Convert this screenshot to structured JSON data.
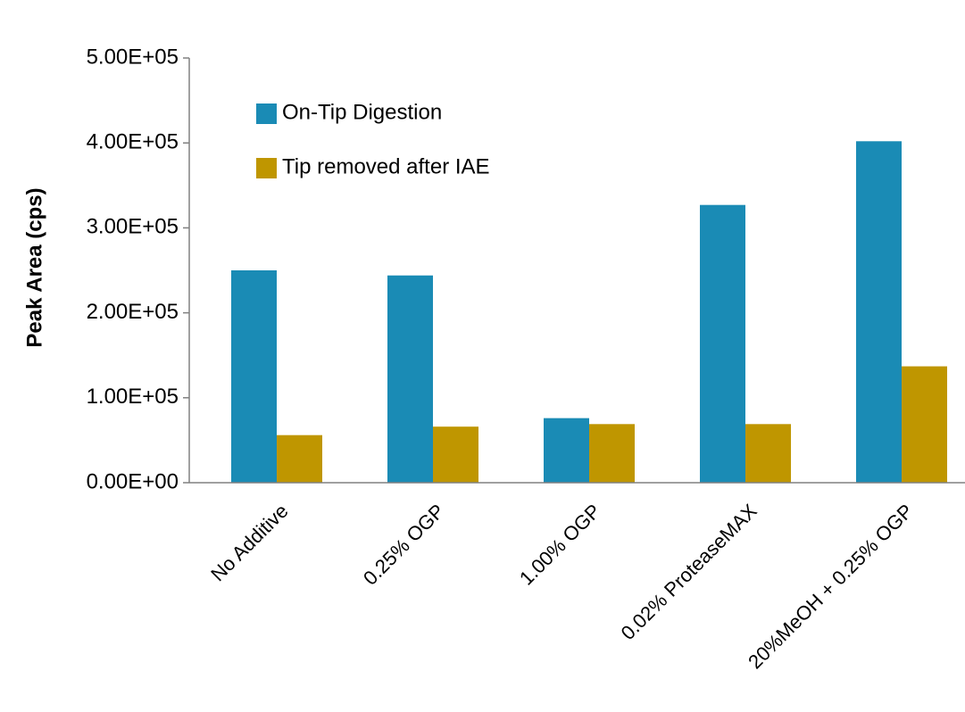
{
  "chart_data": {
    "type": "bar",
    "y_label": "Peak Area (cps)",
    "categories": [
      "No Additive",
      "0.25% OGP",
      "1.00% OGP",
      "0.02% ProteaseMAX",
      "20%MeOH + 0.25% OGP"
    ],
    "series": [
      {
        "name": "On-Tip Digestion",
        "color": "#1a8bb5",
        "values": [
          250000,
          244000,
          76000,
          327000,
          402000
        ]
      },
      {
        "name": "Tip removed  after IAE",
        "color": "#bf9600",
        "values": [
          56000,
          66000,
          69000,
          69000,
          137000
        ]
      }
    ],
    "ylim": [
      0,
      500000
    ],
    "yticks": [
      {
        "value": 0,
        "label": "0.00E+00"
      },
      {
        "value": 100000,
        "label": "1.00E+05"
      },
      {
        "value": 200000,
        "label": "2.00E+05"
      },
      {
        "value": 300000,
        "label": "3.00E+05"
      },
      {
        "value": 400000,
        "label": "4.00E+05"
      },
      {
        "value": 500000,
        "label": "5.00E+05"
      }
    ]
  }
}
